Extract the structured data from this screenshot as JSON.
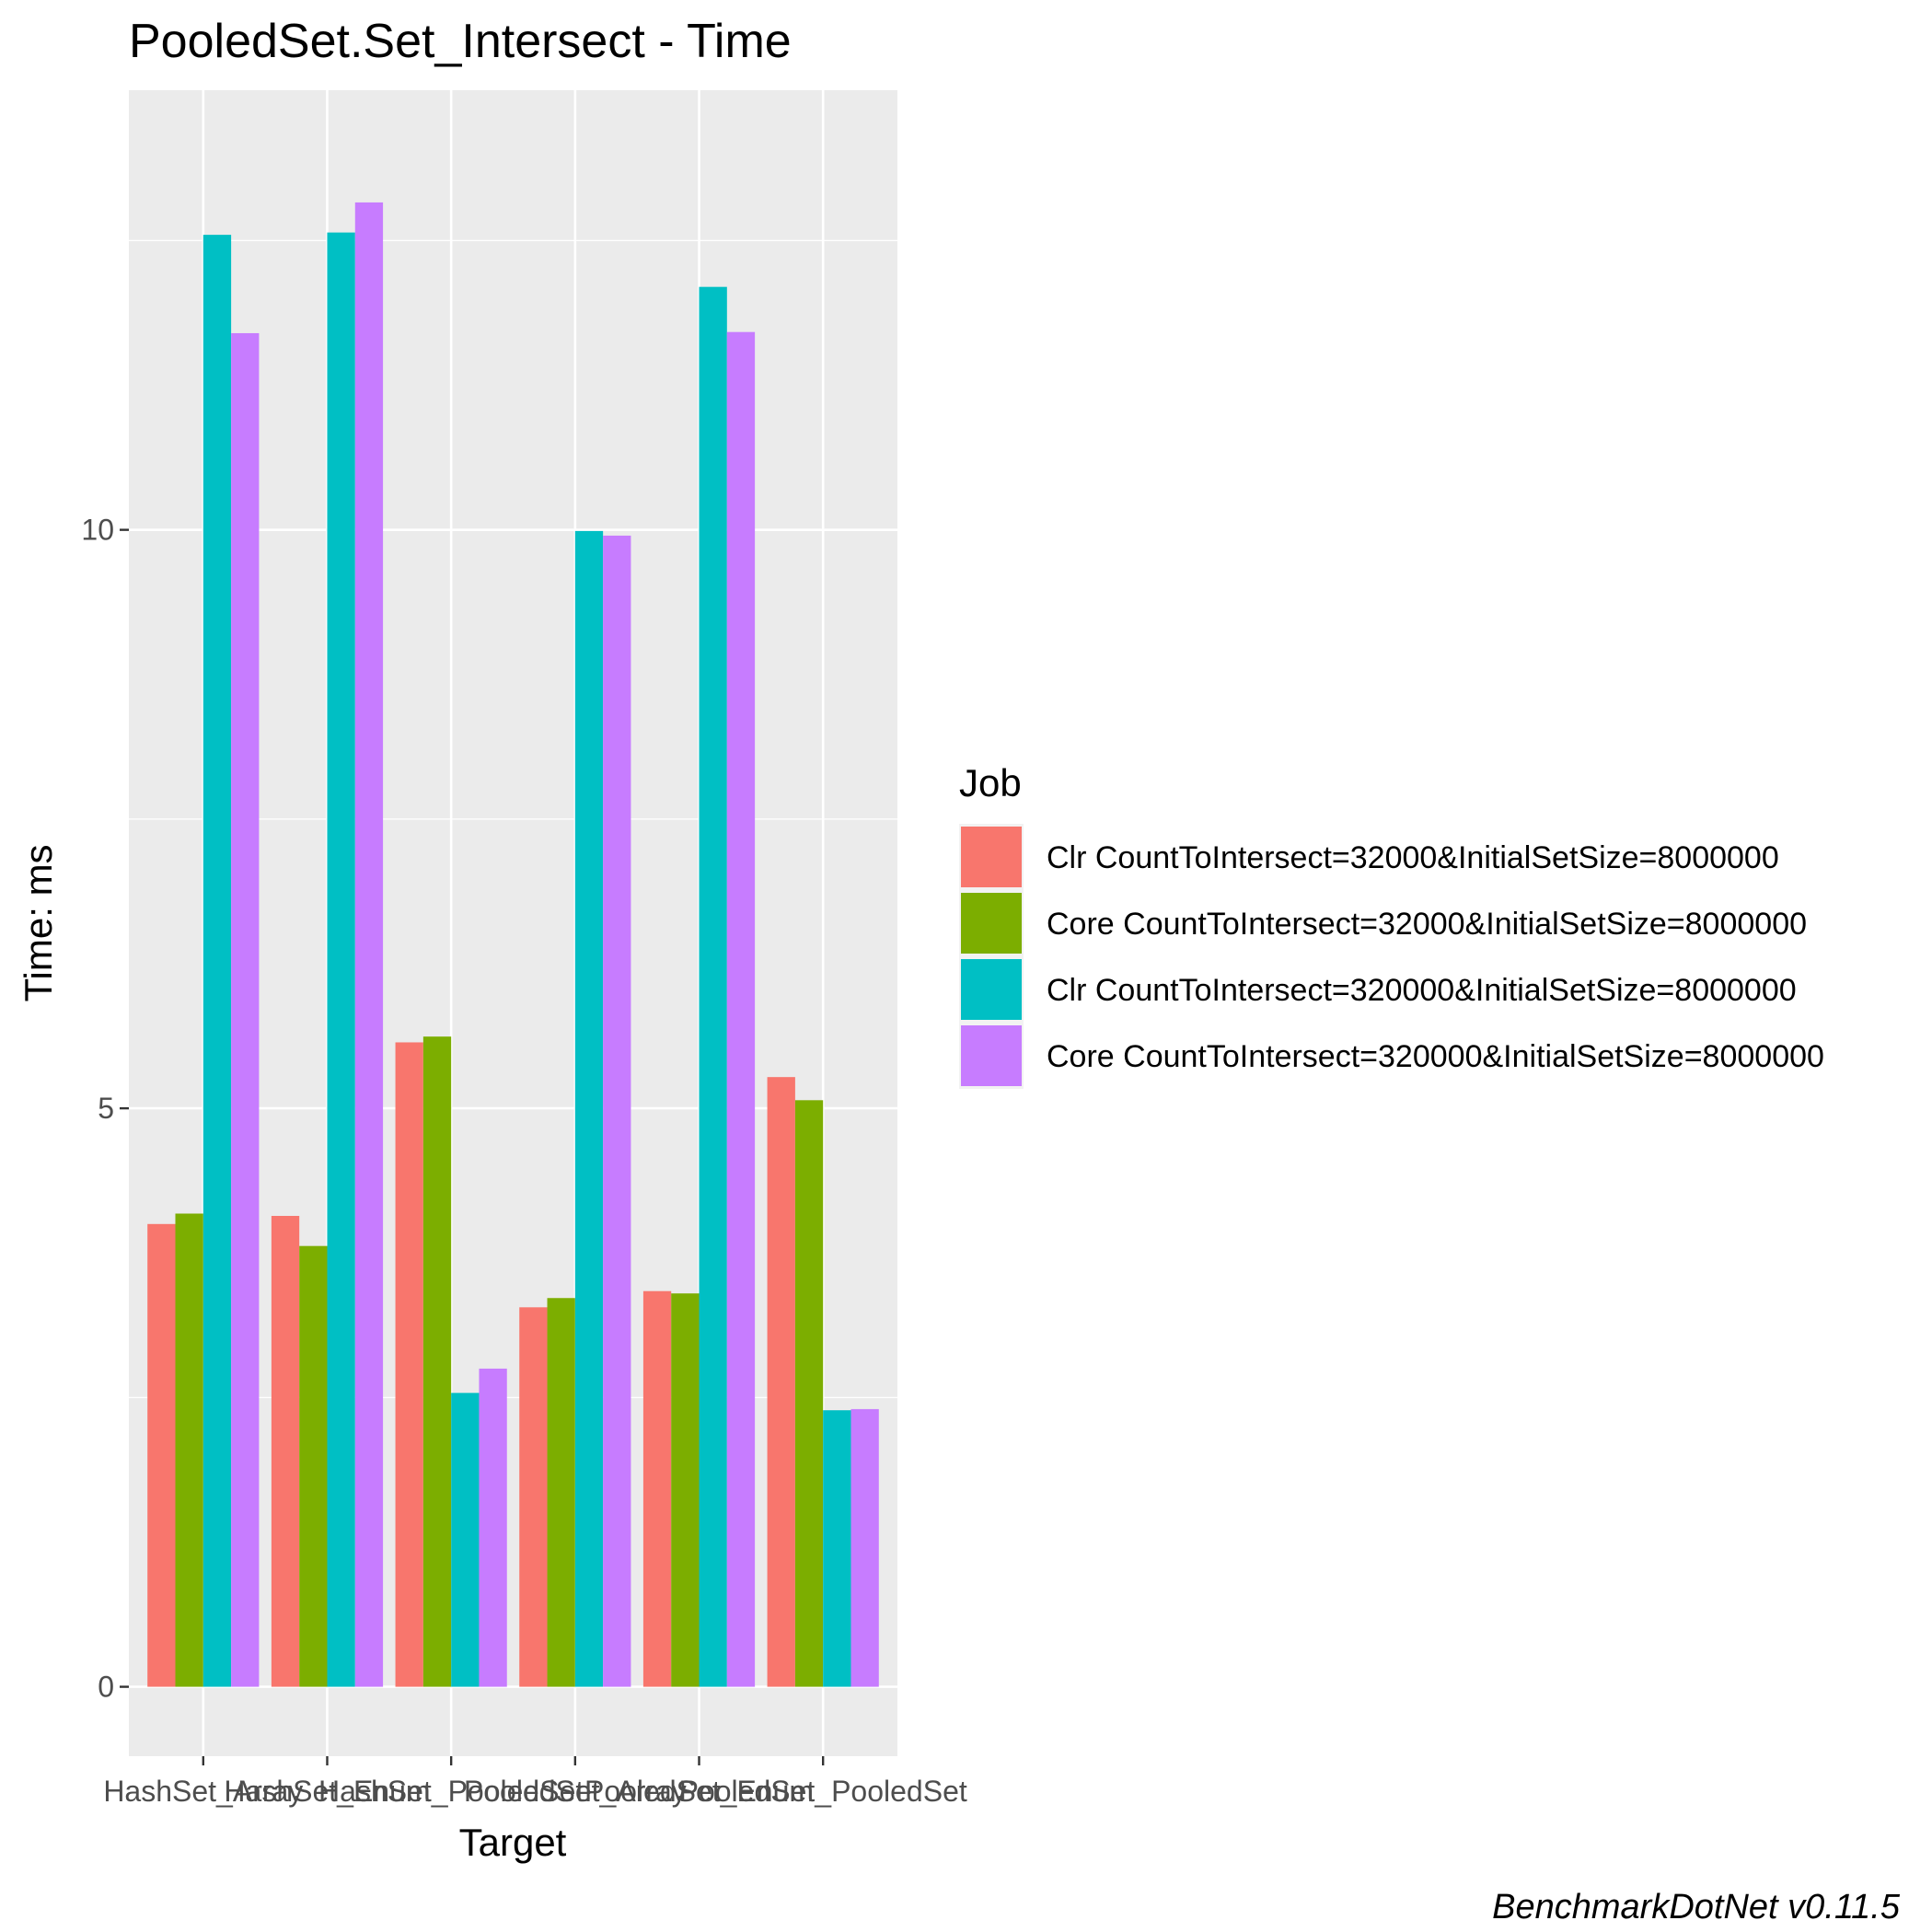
{
  "chart_data": {
    "type": "bar",
    "title": "PooledSet.Set_Intersect - Time",
    "xlabel": "Target",
    "ylabel": "Time: ms",
    "caption": "BenchmarkDotNet v0.11.5",
    "categories": [
      "HashSet_Array",
      "HashSet_Enum",
      "HashSet_PooledSet",
      "PooledSet_Array",
      "PooledSet_Enum",
      "PooledSet_PooledSet"
    ],
    "series": [
      {
        "name": "Clr CountToIntersect=32000&InitialSetSize=8000000",
        "color": "#F8766D",
        "values": [
          4.0,
          4.07,
          5.57,
          3.28,
          3.42,
          5.27
        ]
      },
      {
        "name": "Core CountToIntersect=32000&InitialSetSize=8000000",
        "color": "#7CAE00",
        "values": [
          4.09,
          3.81,
          5.62,
          3.36,
          3.4,
          5.07
        ]
      },
      {
        "name": "Clr CountToIntersect=320000&InitialSetSize=8000000",
        "color": "#00BFC4",
        "values": [
          12.55,
          12.57,
          2.54,
          9.99,
          12.1,
          2.39
        ]
      },
      {
        "name": "Core CountToIntersect=320000&InitialSetSize=8000000",
        "color": "#C77CFF",
        "values": [
          11.7,
          12.83,
          2.75,
          9.95,
          11.71,
          2.4
        ]
      }
    ],
    "y_ticks": [
      0,
      5,
      10
    ],
    "ylim": [
      -0.6,
      13.8
    ],
    "legend_title": "Job",
    "legend_position": "right",
    "grid": true
  }
}
